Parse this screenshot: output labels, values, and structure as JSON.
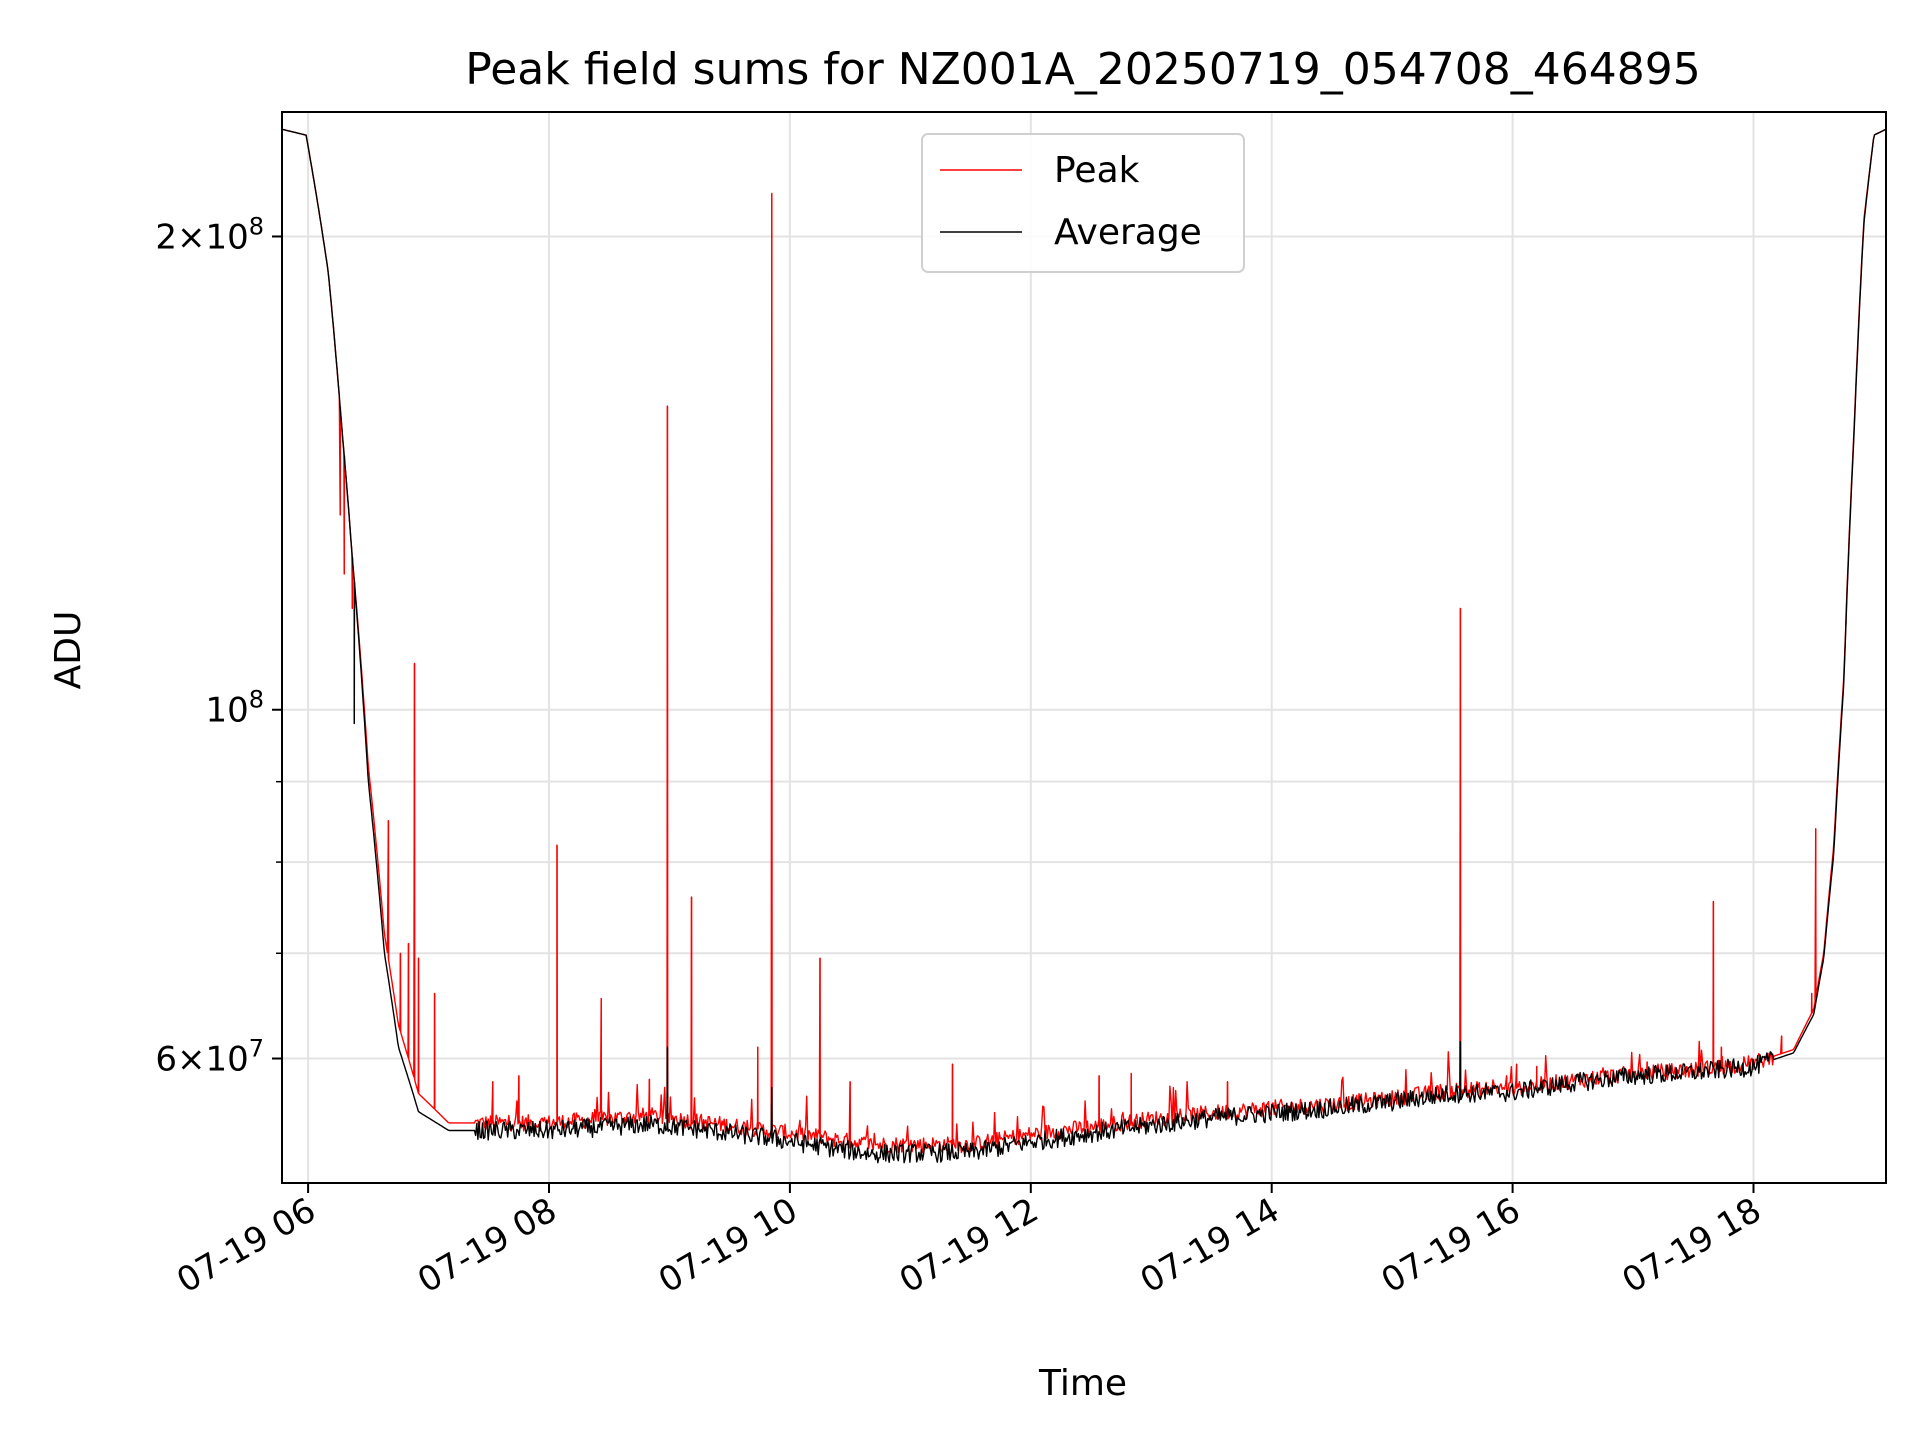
{
  "chart_data": {
    "type": "line",
    "title": "Peak field sums for NZ001A_20250719_054708_464895",
    "xlabel": "Time",
    "ylabel": "ADU",
    "yscale": "log",
    "ylim": [
      50000000,
      240000000
    ],
    "xlim": [
      "2025-07-19T05:47",
      "2025-07-19T19:06"
    ],
    "grid": true,
    "legend_position": "top-center",
    "x_ticks": [
      {
        "at": "2025-07-19T06:00",
        "label": "07-19 06"
      },
      {
        "at": "2025-07-19T08:00",
        "label": "07-19 08"
      },
      {
        "at": "2025-07-19T10:00",
        "label": "07-19 10"
      },
      {
        "at": "2025-07-19T12:00",
        "label": "07-19 12"
      },
      {
        "at": "2025-07-19T14:00",
        "label": "07-19 14"
      },
      {
        "at": "2025-07-19T16:00",
        "label": "07-19 16"
      },
      {
        "at": "2025-07-19T18:00",
        "label": "07-19 18"
      }
    ],
    "y_ticks": [
      {
        "value": 60000000,
        "label": "6×10",
        "exp": "7"
      },
      {
        "value": 100000000,
        "label": "10",
        "exp": "8"
      },
      {
        "value": 200000000,
        "label": "2×10",
        "exp": "8"
      }
    ],
    "y_minor_ticks": [
      70000000,
      80000000,
      90000000
    ],
    "series": [
      {
        "name": "Peak",
        "color": "#ff0000",
        "base": [
          [
            "2025-07-19T05:47",
            234000000
          ],
          [
            "2025-07-19T05:59",
            232000000
          ],
          [
            "2025-07-19T06:10",
            190000000
          ],
          [
            "2025-07-19T06:17",
            150000000
          ],
          [
            "2025-07-19T06:22",
            125000000
          ],
          [
            "2025-07-19T06:30",
            92000000
          ],
          [
            "2025-07-19T06:38",
            72000000
          ],
          [
            "2025-07-19T06:45",
            63000000
          ],
          [
            "2025-07-19T06:55",
            57000000
          ],
          [
            "2025-07-19T07:10",
            54600000
          ],
          [
            "2025-07-19T08:00",
            54600000
          ],
          [
            "2025-07-19T08:50",
            55200000
          ],
          [
            "2025-07-19T09:20",
            54600000
          ],
          [
            "2025-07-19T09:50",
            54000000
          ],
          [
            "2025-07-19T10:10",
            53600000
          ],
          [
            "2025-07-19T10:40",
            52900000
          ],
          [
            "2025-07-19T11:30",
            52900000
          ],
          [
            "2025-07-19T12:00",
            53700000
          ],
          [
            "2025-07-19T12:30",
            54300000
          ],
          [
            "2025-07-19T13:00",
            54900000
          ],
          [
            "2025-07-19T13:30",
            55400000
          ],
          [
            "2025-07-19T14:00",
            55800000
          ],
          [
            "2025-07-19T14:30",
            56100000
          ],
          [
            "2025-07-19T15:00",
            56600000
          ],
          [
            "2025-07-19T15:30",
            57300000
          ],
          [
            "2025-07-19T16:00",
            57400000
          ],
          [
            "2025-07-19T16:30",
            58100000
          ],
          [
            "2025-07-19T17:00",
            58700000
          ],
          [
            "2025-07-19T17:30",
            59000000
          ],
          [
            "2025-07-19T18:00",
            59600000
          ],
          [
            "2025-07-19T18:20",
            60800000
          ],
          [
            "2025-07-19T18:30",
            64500000
          ],
          [
            "2025-07-19T18:35",
            70000000
          ],
          [
            "2025-07-19T18:40",
            82000000
          ],
          [
            "2025-07-19T18:45",
            105000000
          ],
          [
            "2025-07-19T18:50",
            150000000
          ],
          [
            "2025-07-19T18:55",
            205000000
          ],
          [
            "2025-07-19T19:00",
            232000000
          ],
          [
            "2025-07-19T19:06",
            234000000
          ]
        ],
        "spikes": [
          [
            "2025-07-19T06:16",
            133000000
          ],
          [
            "2025-07-19T06:18",
            122000000
          ],
          [
            "2025-07-19T06:22",
            116000000
          ],
          [
            "2025-07-19T06:40",
            85000000
          ],
          [
            "2025-07-19T06:46",
            70000000
          ],
          [
            "2025-07-19T06:50",
            71000000
          ],
          [
            "2025-07-19T06:53",
            107000000
          ],
          [
            "2025-07-19T06:55",
            69500000
          ],
          [
            "2025-07-19T07:03",
            66000000
          ],
          [
            "2025-07-19T07:32",
            58000000
          ],
          [
            "2025-07-19T07:45",
            58500000
          ],
          [
            "2025-07-19T08:04",
            82000000
          ],
          [
            "2025-07-19T08:26",
            65500000
          ],
          [
            "2025-07-19T08:50",
            58200000
          ],
          [
            "2025-07-19T08:59",
            156000000
          ],
          [
            "2025-07-19T09:11",
            76000000
          ],
          [
            "2025-07-19T09:44",
            61000000
          ],
          [
            "2025-07-19T09:51",
            213000000
          ],
          [
            "2025-07-19T10:15",
            69500000
          ],
          [
            "2025-07-19T10:30",
            58000000
          ],
          [
            "2025-07-19T11:21",
            59500000
          ],
          [
            "2025-07-19T12:34",
            58500000
          ],
          [
            "2025-07-19T12:50",
            58700000
          ],
          [
            "2025-07-19T13:38",
            58000000
          ],
          [
            "2025-07-19T15:34",
            116000000
          ],
          [
            "2025-07-19T15:57",
            58500000
          ],
          [
            "2025-07-19T16:02",
            59500000
          ],
          [
            "2025-07-19T16:12",
            59300000
          ],
          [
            "2025-07-19T17:07",
            59700000
          ],
          [
            "2025-07-19T17:40",
            75500000
          ],
          [
            "2025-07-19T17:44",
            61000000
          ],
          [
            "2025-07-19T18:14",
            62000000
          ],
          [
            "2025-07-19T18:29",
            66000000
          ],
          [
            "2025-07-19T18:31",
            84000000
          ],
          [
            "2025-07-19T18:46",
            113000000
          ]
        ]
      },
      {
        "name": "Average",
        "color": "#000000",
        "base": [
          [
            "2025-07-19T05:47",
            234000000
          ],
          [
            "2025-07-19T05:59",
            232000000
          ],
          [
            "2025-07-19T06:10",
            190000000
          ],
          [
            "2025-07-19T06:17",
            150000000
          ],
          [
            "2025-07-19T06:22",
            125000000
          ],
          [
            "2025-07-19T06:30",
            90000000
          ],
          [
            "2025-07-19T06:38",
            70000000
          ],
          [
            "2025-07-19T06:45",
            61000000
          ],
          [
            "2025-07-19T06:55",
            55500000
          ],
          [
            "2025-07-19T07:10",
            54000000
          ],
          [
            "2025-07-19T08:00",
            54000000
          ],
          [
            "2025-07-19T08:50",
            54500000
          ],
          [
            "2025-07-19T09:20",
            54000000
          ],
          [
            "2025-07-19T09:50",
            53400000
          ],
          [
            "2025-07-19T10:10",
            52900000
          ],
          [
            "2025-07-19T10:40",
            52200000
          ],
          [
            "2025-07-19T11:30",
            52300000
          ],
          [
            "2025-07-19T12:00",
            53100000
          ],
          [
            "2025-07-19T12:30",
            53800000
          ],
          [
            "2025-07-19T13:00",
            54400000
          ],
          [
            "2025-07-19T13:30",
            55000000
          ],
          [
            "2025-07-19T14:00",
            55400000
          ],
          [
            "2025-07-19T14:30",
            55800000
          ],
          [
            "2025-07-19T15:00",
            56300000
          ],
          [
            "2025-07-19T15:30",
            57000000
          ],
          [
            "2025-07-19T16:00",
            57100000
          ],
          [
            "2025-07-19T16:30",
            57900000
          ],
          [
            "2025-07-19T17:00",
            58500000
          ],
          [
            "2025-07-19T17:30",
            58800000
          ],
          [
            "2025-07-19T18:00",
            59300000
          ],
          [
            "2025-07-19T18:20",
            60500000
          ],
          [
            "2025-07-19T18:30",
            64000000
          ],
          [
            "2025-07-19T18:35",
            69500000
          ],
          [
            "2025-07-19T18:40",
            81000000
          ],
          [
            "2025-07-19T18:45",
            104000000
          ],
          [
            "2025-07-19T18:50",
            149000000
          ],
          [
            "2025-07-19T18:55",
            204000000
          ],
          [
            "2025-07-19T19:00",
            232000000
          ],
          [
            "2025-07-19T19:06",
            234000000
          ]
        ],
        "spikes": [
          [
            "2025-07-19T08:59",
            61000000
          ],
          [
            "2025-07-19T09:51",
            57500000
          ],
          [
            "2025-07-19T15:34",
            61500000
          ],
          [
            "2025-07-19T06:23",
            98000000
          ]
        ]
      }
    ]
  }
}
